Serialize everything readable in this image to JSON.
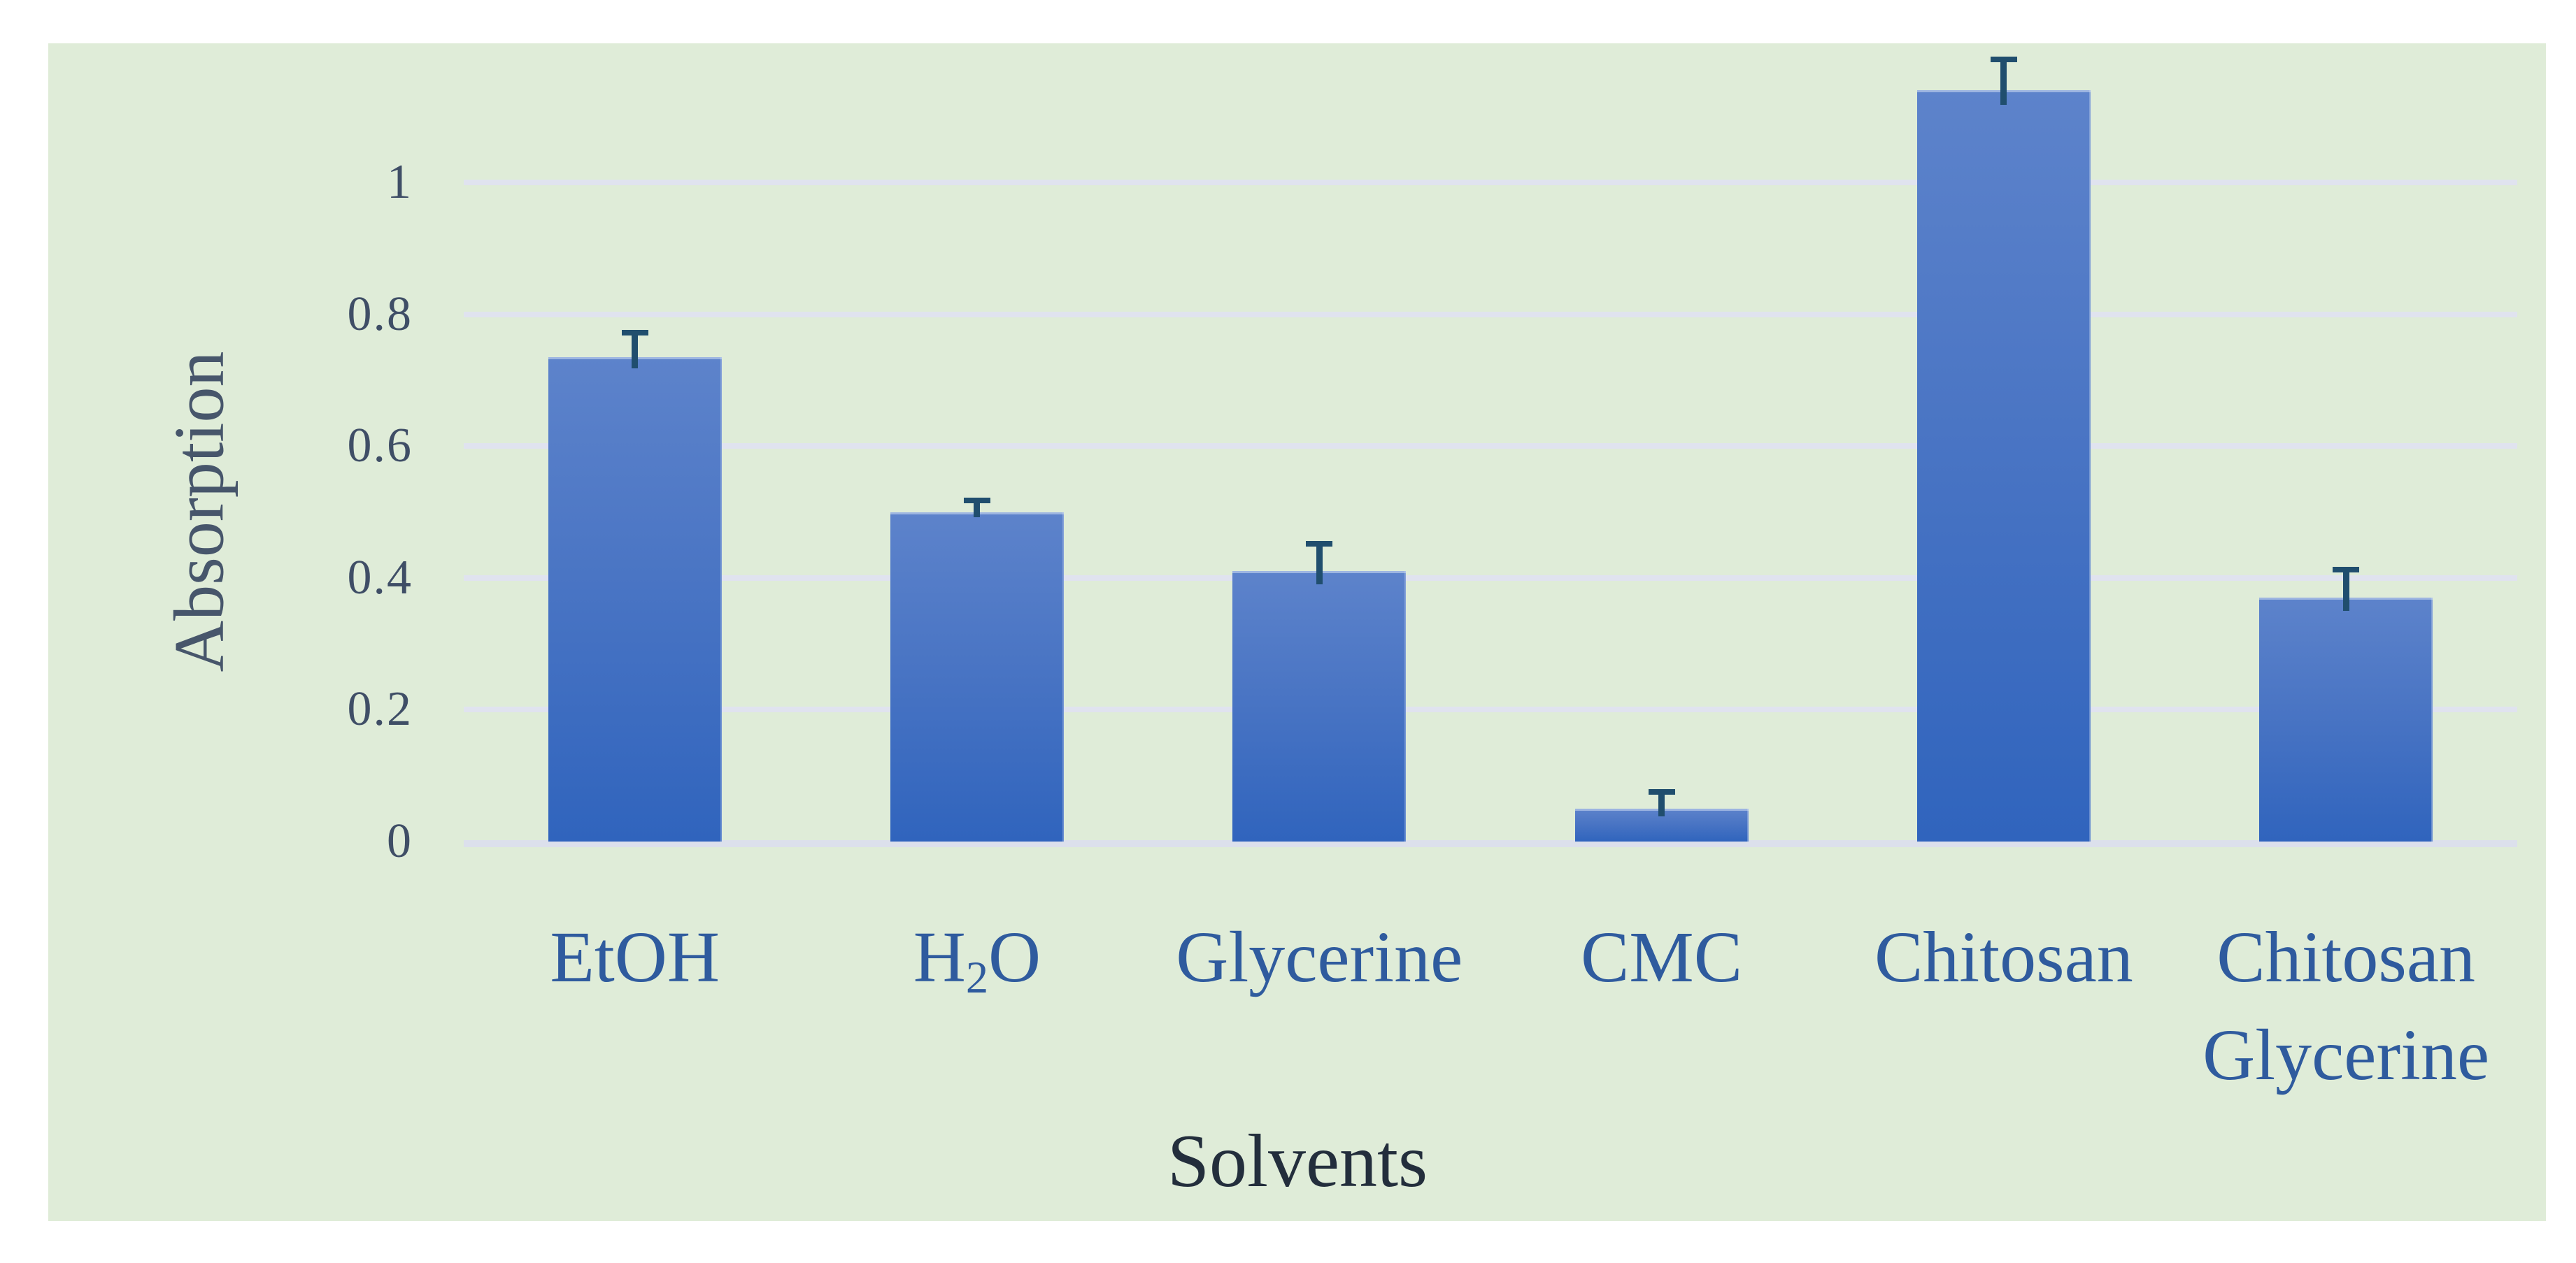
{
  "chart_data": {
    "type": "bar",
    "title": "",
    "xlabel": "Solvents",
    "ylabel": "Absorption",
    "categories": [
      "EtOH",
      "H₂O",
      "Glycerine",
      "CMC",
      "Chitosan",
      "Chitosan Glycerine"
    ],
    "category_labels": [
      [
        [
          {
            "text": "EtOH"
          }
        ]
      ],
      [
        [
          {
            "text": "H"
          },
          {
            "text": "2",
            "sub": true
          },
          {
            "text": "O"
          }
        ]
      ],
      [
        [
          {
            "text": "Glycerine"
          }
        ]
      ],
      [
        [
          {
            "text": "CMC"
          }
        ]
      ],
      [
        [
          {
            "text": "Chitosan"
          }
        ]
      ],
      [
        [
          {
            "text": "Chitosan"
          }
        ],
        [
          {
            "text": "Glycerine"
          }
        ]
      ]
    ],
    "series": [
      {
        "name": "Absorption",
        "values": [
          0.735,
          0.5,
          0.41,
          0.05,
          1.14,
          0.37
        ],
        "errors_plus": [
          0.035,
          0.015,
          0.04,
          0.023,
          0.045,
          0.04
        ]
      }
    ],
    "yticks": [
      {
        "label": "0",
        "value": 0
      },
      {
        "label": "0.2",
        "value": 0.2
      },
      {
        "label": "0.4",
        "value": 0.4
      },
      {
        "label": "0.6",
        "value": 0.6
      },
      {
        "label": "0.8",
        "value": 0.8
      },
      {
        "label": "1",
        "value": 1
      }
    ],
    "ylim": [
      0,
      1.21
    ],
    "grid": true,
    "legend": "none",
    "error_bars": "plus-cap"
  },
  "colors": {
    "page_background": "#ffffff",
    "plot_background": "#dfecd8",
    "gridline": "#e0e3ef",
    "axis_line": "#dce0ec",
    "bar_top": "#5d83cb",
    "bar_bottom": "#3064bd",
    "error_bar": "#204e6e",
    "ytick_text": "#3f4e66",
    "category_text": "#2f5b9e",
    "y_title_text": "#47566b",
    "x_title_text": "#232e3c"
  }
}
